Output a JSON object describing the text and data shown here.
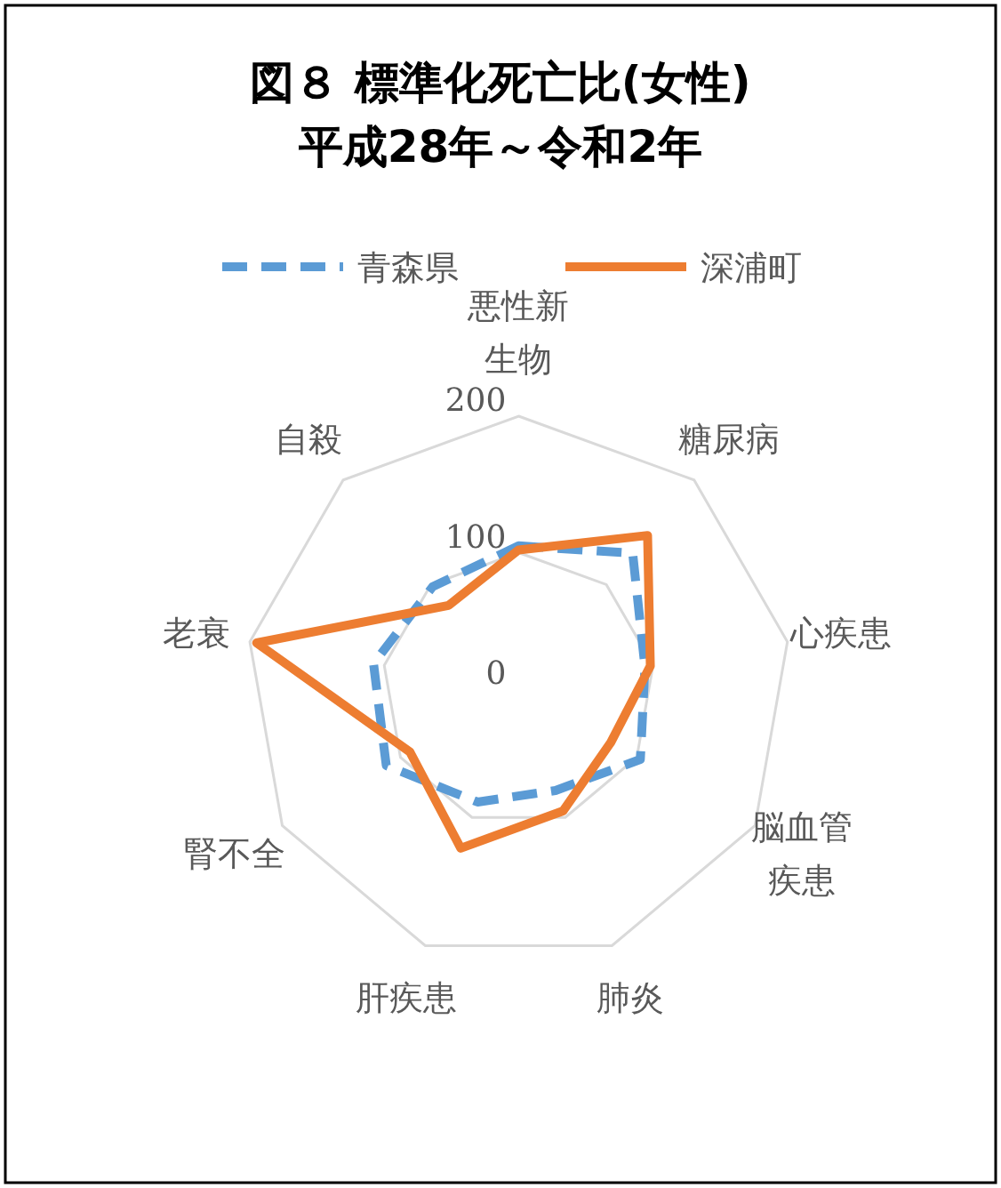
{
  "chart_data": {
    "type": "radar",
    "title": "図８ 標準化死亡比(女性)\n平成28年～令和2年",
    "categories": [
      "悪性新生物",
      "糖尿病",
      "心疾患",
      "脳血管疾患",
      "肺炎",
      "肝疾患",
      "腎不全",
      "老衰",
      "自殺"
    ],
    "series": [
      {
        "name": "青森県",
        "color": "#5b9bd5",
        "line_style": "dashed",
        "values": [
          105,
          130,
          94,
          103,
          79,
          88,
          112,
          108,
          98
        ]
      },
      {
        "name": "深浦町",
        "color": "#ed7d31",
        "line_style": "solid",
        "values": [
          102,
          147,
          98,
          78,
          95,
          124,
          92,
          195,
          80
        ]
      }
    ],
    "ylim": [
      0,
      200
    ],
    "yticks": [
      0,
      100,
      200
    ],
    "grid": true,
    "legend": "top",
    "marker": "none"
  }
}
